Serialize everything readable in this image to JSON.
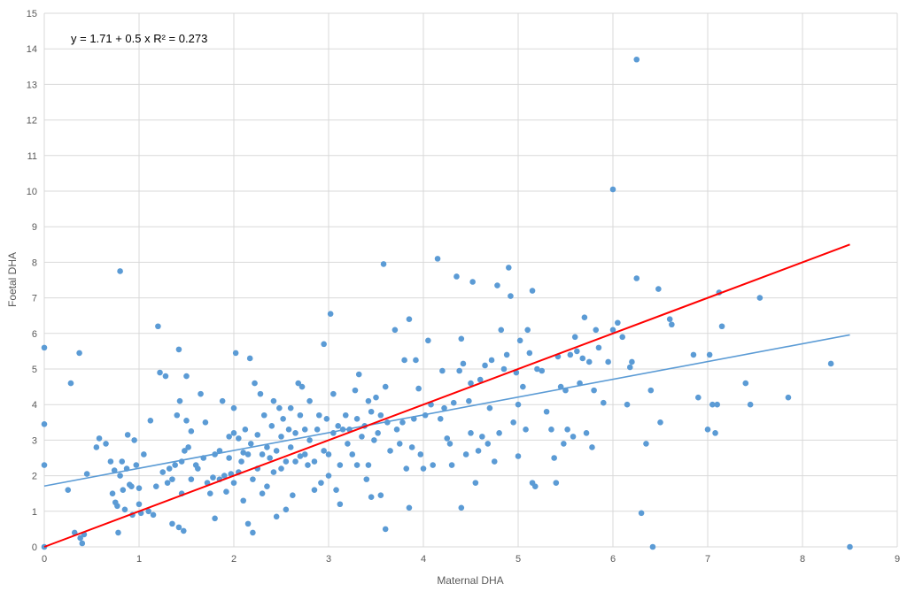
{
  "chart_data": {
    "type": "scatter",
    "title": "",
    "xlabel": "Maternal DHA",
    "ylabel": "Foetal DHA",
    "xlim": [
      0,
      9
    ],
    "ylim": [
      0,
      15
    ],
    "x_ticks": [
      "0",
      "1",
      "2",
      "3",
      "4",
      "5",
      "6",
      "7",
      "8",
      "9"
    ],
    "y_ticks": [
      "0",
      "1",
      "2",
      "3",
      "4",
      "5",
      "6",
      "7",
      "8",
      "9",
      "10",
      "11",
      "12",
      "13",
      "14",
      "15"
    ],
    "grid": true,
    "annotation": "y = 1.71 + 0.5 x R² = 0.273",
    "point_color": "#5b9bd5",
    "series": [
      {
        "points": [
          [
            0.0,
            5.6
          ],
          [
            0.0,
            3.45
          ],
          [
            0.0,
            2.3
          ],
          [
            0.0,
            0.0
          ],
          [
            0.25,
            1.6
          ],
          [
            0.28,
            4.6
          ],
          [
            0.32,
            0.4
          ],
          [
            0.37,
            5.45
          ],
          [
            0.38,
            0.25
          ],
          [
            0.4,
            0.1
          ],
          [
            0.42,
            0.35
          ],
          [
            0.45,
            2.05
          ],
          [
            0.55,
            2.8
          ],
          [
            0.58,
            3.05
          ],
          [
            0.65,
            2.9
          ],
          [
            0.7,
            2.4
          ],
          [
            0.72,
            1.5
          ],
          [
            0.74,
            2.15
          ],
          [
            0.75,
            1.25
          ],
          [
            0.77,
            1.15
          ],
          [
            0.78,
            0.4
          ],
          [
            0.8,
            2.0
          ],
          [
            0.8,
            7.75
          ],
          [
            0.82,
            2.4
          ],
          [
            0.83,
            1.6
          ],
          [
            0.85,
            1.05
          ],
          [
            0.87,
            2.2
          ],
          [
            0.88,
            3.15
          ],
          [
            0.9,
            1.75
          ],
          [
            0.92,
            1.7
          ],
          [
            0.93,
            0.9
          ],
          [
            0.95,
            3.0
          ],
          [
            0.97,
            2.3
          ],
          [
            1.0,
            1.65
          ],
          [
            1.0,
            1.2
          ],
          [
            1.02,
            0.95
          ],
          [
            1.05,
            2.6
          ],
          [
            1.1,
            1.0
          ],
          [
            1.12,
            3.55
          ],
          [
            1.15,
            0.9
          ],
          [
            1.18,
            1.7
          ],
          [
            1.2,
            6.2
          ],
          [
            1.22,
            4.9
          ],
          [
            1.25,
            2.1
          ],
          [
            1.28,
            4.8
          ],
          [
            1.3,
            1.8
          ],
          [
            1.32,
            2.2
          ],
          [
            1.35,
            1.9
          ],
          [
            1.35,
            0.65
          ],
          [
            1.38,
            2.3
          ],
          [
            1.4,
            3.7
          ],
          [
            1.42,
            5.55
          ],
          [
            1.42,
            0.55
          ],
          [
            1.43,
            4.1
          ],
          [
            1.45,
            2.4
          ],
          [
            1.45,
            1.5
          ],
          [
            1.47,
            0.45
          ],
          [
            1.48,
            2.7
          ],
          [
            1.5,
            4.8
          ],
          [
            1.5,
            3.55
          ],
          [
            1.52,
            2.8
          ],
          [
            1.55,
            3.25
          ],
          [
            1.55,
            1.9
          ],
          [
            1.6,
            2.3
          ],
          [
            1.62,
            2.2
          ],
          [
            1.65,
            4.3
          ],
          [
            1.68,
            2.5
          ],
          [
            1.7,
            3.5
          ],
          [
            1.72,
            1.8
          ],
          [
            1.75,
            1.5
          ],
          [
            1.78,
            1.95
          ],
          [
            1.8,
            2.6
          ],
          [
            1.8,
            0.8
          ],
          [
            1.85,
            2.7
          ],
          [
            1.85,
            1.9
          ],
          [
            1.88,
            4.1
          ],
          [
            1.9,
            2.0
          ],
          [
            1.92,
            1.55
          ],
          [
            1.95,
            2.5
          ],
          [
            1.95,
            3.1
          ],
          [
            1.97,
            2.05
          ],
          [
            2.0,
            3.2
          ],
          [
            2.0,
            3.9
          ],
          [
            2.0,
            1.8
          ],
          [
            2.02,
            5.45
          ],
          [
            2.05,
            2.1
          ],
          [
            2.05,
            3.05
          ],
          [
            2.08,
            2.4
          ],
          [
            2.1,
            2.65
          ],
          [
            2.1,
            1.3
          ],
          [
            2.12,
            3.3
          ],
          [
            2.15,
            2.6
          ],
          [
            2.15,
            0.65
          ],
          [
            2.17,
            5.3
          ],
          [
            2.18,
            2.9
          ],
          [
            2.2,
            0.4
          ],
          [
            2.2,
            1.9
          ],
          [
            2.22,
            4.6
          ],
          [
            2.25,
            3.15
          ],
          [
            2.25,
            2.2
          ],
          [
            2.28,
            4.3
          ],
          [
            2.3,
            2.6
          ],
          [
            2.3,
            1.5
          ],
          [
            2.32,
            3.7
          ],
          [
            2.35,
            2.8
          ],
          [
            2.35,
            1.7
          ],
          [
            2.38,
            2.5
          ],
          [
            2.4,
            3.4
          ],
          [
            2.42,
            4.1
          ],
          [
            2.42,
            2.1
          ],
          [
            2.45,
            2.7
          ],
          [
            2.45,
            0.85
          ],
          [
            2.48,
            3.9
          ],
          [
            2.5,
            3.1
          ],
          [
            2.5,
            2.2
          ],
          [
            2.52,
            3.6
          ],
          [
            2.55,
            2.4
          ],
          [
            2.55,
            1.05
          ],
          [
            2.58,
            3.3
          ],
          [
            2.6,
            2.8
          ],
          [
            2.6,
            3.9
          ],
          [
            2.62,
            1.45
          ],
          [
            2.65,
            2.4
          ],
          [
            2.65,
            3.2
          ],
          [
            2.68,
            4.6
          ],
          [
            2.7,
            2.55
          ],
          [
            2.7,
            3.7
          ],
          [
            2.72,
            4.5
          ],
          [
            2.75,
            2.6
          ],
          [
            2.75,
            3.3
          ],
          [
            2.78,
            2.3
          ],
          [
            2.8,
            3.0
          ],
          [
            2.8,
            4.1
          ],
          [
            2.85,
            1.6
          ],
          [
            2.85,
            2.4
          ],
          [
            2.88,
            3.3
          ],
          [
            2.9,
            3.7
          ],
          [
            2.92,
            1.8
          ],
          [
            2.95,
            5.7
          ],
          [
            2.95,
            2.7
          ],
          [
            2.98,
            3.6
          ],
          [
            3.0,
            2.0
          ],
          [
            3.0,
            2.6
          ],
          [
            3.02,
            6.55
          ],
          [
            3.05,
            3.2
          ],
          [
            3.05,
            4.3
          ],
          [
            3.08,
            1.6
          ],
          [
            3.1,
            3.4
          ],
          [
            3.12,
            1.2
          ],
          [
            3.12,
            2.3
          ],
          [
            3.15,
            3.3
          ],
          [
            3.18,
            3.7
          ],
          [
            3.2,
            2.9
          ],
          [
            3.22,
            3.3
          ],
          [
            3.25,
            2.6
          ],
          [
            3.28,
            4.4
          ],
          [
            3.3,
            3.6
          ],
          [
            3.3,
            2.3
          ],
          [
            3.32,
            4.85
          ],
          [
            3.35,
            3.1
          ],
          [
            3.38,
            3.4
          ],
          [
            3.4,
            1.9
          ],
          [
            3.42,
            2.3
          ],
          [
            3.42,
            4.1
          ],
          [
            3.45,
            3.8
          ],
          [
            3.45,
            1.4
          ],
          [
            3.48,
            3.0
          ],
          [
            3.5,
            4.2
          ],
          [
            3.52,
            3.2
          ],
          [
            3.55,
            1.45
          ],
          [
            3.55,
            3.7
          ],
          [
            3.58,
            7.95
          ],
          [
            3.6,
            4.5
          ],
          [
            3.6,
            0.5
          ],
          [
            3.62,
            3.5
          ],
          [
            3.65,
            2.7
          ],
          [
            3.7,
            6.1
          ],
          [
            3.72,
            3.3
          ],
          [
            3.75,
            2.9
          ],
          [
            3.78,
            3.5
          ],
          [
            3.8,
            5.25
          ],
          [
            3.82,
            2.2
          ],
          [
            3.85,
            6.4
          ],
          [
            3.85,
            1.1
          ],
          [
            3.88,
            2.8
          ],
          [
            3.9,
            3.6
          ],
          [
            3.92,
            5.25
          ],
          [
            3.95,
            4.45
          ],
          [
            3.97,
            2.6
          ],
          [
            4.0,
            2.2
          ],
          [
            4.02,
            3.7
          ],
          [
            4.05,
            5.8
          ],
          [
            4.08,
            4.0
          ],
          [
            4.1,
            2.3
          ],
          [
            4.15,
            8.1
          ],
          [
            4.18,
            3.6
          ],
          [
            4.2,
            4.95
          ],
          [
            4.22,
            3.9
          ],
          [
            4.25,
            3.05
          ],
          [
            4.28,
            2.9
          ],
          [
            4.3,
            2.3
          ],
          [
            4.32,
            4.05
          ],
          [
            4.35,
            7.6
          ],
          [
            4.38,
            4.95
          ],
          [
            4.4,
            5.85
          ],
          [
            4.4,
            1.1
          ],
          [
            4.42,
            5.15
          ],
          [
            4.45,
            2.6
          ],
          [
            4.48,
            4.1
          ],
          [
            4.5,
            4.6
          ],
          [
            4.5,
            3.2
          ],
          [
            4.52,
            7.45
          ],
          [
            4.55,
            1.8
          ],
          [
            4.58,
            2.7
          ],
          [
            4.6,
            4.7
          ],
          [
            4.62,
            3.1
          ],
          [
            4.65,
            5.1
          ],
          [
            4.68,
            2.9
          ],
          [
            4.7,
            3.9
          ],
          [
            4.72,
            5.25
          ],
          [
            4.75,
            2.4
          ],
          [
            4.78,
            7.35
          ],
          [
            4.8,
            3.2
          ],
          [
            4.82,
            6.1
          ],
          [
            4.85,
            5.0
          ],
          [
            4.88,
            5.4
          ],
          [
            4.9,
            7.85
          ],
          [
            4.92,
            7.05
          ],
          [
            4.95,
            3.5
          ],
          [
            4.98,
            4.9
          ],
          [
            5.0,
            4.0
          ],
          [
            5.0,
            2.55
          ],
          [
            5.02,
            5.8
          ],
          [
            5.05,
            4.5
          ],
          [
            5.08,
            3.3
          ],
          [
            5.1,
            6.1
          ],
          [
            5.12,
            5.45
          ],
          [
            5.15,
            7.2
          ],
          [
            5.15,
            1.8
          ],
          [
            5.18,
            1.7
          ],
          [
            5.2,
            5.0
          ],
          [
            5.25,
            4.95
          ],
          [
            5.3,
            3.8
          ],
          [
            5.35,
            3.3
          ],
          [
            5.38,
            2.5
          ],
          [
            5.4,
            1.8
          ],
          [
            5.42,
            5.35
          ],
          [
            5.45,
            4.5
          ],
          [
            5.48,
            2.9
          ],
          [
            5.5,
            4.4
          ],
          [
            5.52,
            3.3
          ],
          [
            5.55,
            5.4
          ],
          [
            5.58,
            3.1
          ],
          [
            5.6,
            5.9
          ],
          [
            5.62,
            5.5
          ],
          [
            5.65,
            4.6
          ],
          [
            5.68,
            5.3
          ],
          [
            5.7,
            6.45
          ],
          [
            5.72,
            3.2
          ],
          [
            5.75,
            5.2
          ],
          [
            5.78,
            2.8
          ],
          [
            5.8,
            4.4
          ],
          [
            5.82,
            6.1
          ],
          [
            5.85,
            5.6
          ],
          [
            5.9,
            4.05
          ],
          [
            5.95,
            5.2
          ],
          [
            6.0,
            6.1
          ],
          [
            6.0,
            10.05
          ],
          [
            6.05,
            6.3
          ],
          [
            6.1,
            5.9
          ],
          [
            6.15,
            4.0
          ],
          [
            6.18,
            5.05
          ],
          [
            6.2,
            5.2
          ],
          [
            6.25,
            7.55
          ],
          [
            6.25,
            13.7
          ],
          [
            6.3,
            0.95
          ],
          [
            6.35,
            2.9
          ],
          [
            6.4,
            4.4
          ],
          [
            6.42,
            0.0
          ],
          [
            6.48,
            7.25
          ],
          [
            6.5,
            3.5
          ],
          [
            6.6,
            6.4
          ],
          [
            6.62,
            6.25
          ],
          [
            6.85,
            5.4
          ],
          [
            6.9,
            4.2
          ],
          [
            7.0,
            3.3
          ],
          [
            7.02,
            5.4
          ],
          [
            7.05,
            4.0
          ],
          [
            7.08,
            3.2
          ],
          [
            7.1,
            4.0
          ],
          [
            7.12,
            7.15
          ],
          [
            7.15,
            6.2
          ],
          [
            7.4,
            4.6
          ],
          [
            7.45,
            4.0
          ],
          [
            7.55,
            7.0
          ],
          [
            7.85,
            4.2
          ],
          [
            8.3,
            5.15
          ],
          [
            8.5,
            0.0
          ]
        ]
      }
    ],
    "trendlines": [
      {
        "label": "y = 1.71 + 0.5 x",
        "intercept": 1.71,
        "slope": 0.5,
        "x_range": [
          0,
          8.5
        ],
        "color": "#5b9bd5"
      },
      {
        "label": "y = x",
        "intercept": 0,
        "slope": 1,
        "x_range": [
          0,
          8.5
        ],
        "color": "#ff0000"
      }
    ]
  }
}
